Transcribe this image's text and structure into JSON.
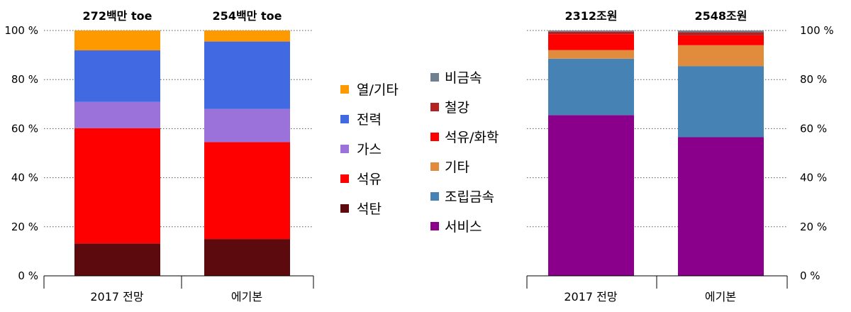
{
  "chart_data": [
    {
      "type": "bar",
      "stacked": "percent",
      "categories": [
        "2017 전망",
        "에기본"
      ],
      "totals": [
        "272백만 toe",
        "254백만 toe"
      ],
      "ylim": [
        0,
        100
      ],
      "yticks": [
        "0 %",
        "20 %",
        "40 %",
        "60 %",
        "80 %",
        "100 %"
      ],
      "grid": true,
      "legend_position": "right",
      "series": [
        {
          "name": "석탄",
          "color": "#5c0a0e",
          "values": [
            13.2,
            15.0
          ]
        },
        {
          "name": "석유",
          "color": "#ff0000",
          "values": [
            47.0,
            39.5
          ]
        },
        {
          "name": "가스",
          "color": "#9b72d9",
          "values": [
            10.7,
            13.5
          ]
        },
        {
          "name": "전력",
          "color": "#4169e1",
          "values": [
            21.0,
            27.5
          ]
        },
        {
          "name": "열/기타",
          "color": "#ff9900",
          "values": [
            8.1,
            4.5
          ]
        }
      ]
    },
    {
      "type": "bar",
      "stacked": "percent",
      "categories": [
        "2017 전망",
        "에기본"
      ],
      "totals": [
        "2312조원",
        "2548조원"
      ],
      "ylim": [
        0,
        100
      ],
      "yticks": [
        "0 %",
        "20 %",
        "40 %",
        "60 %",
        "80 %",
        "100 %"
      ],
      "grid": true,
      "legend_position": "left",
      "series": [
        {
          "name": "서비스",
          "color": "#8b008b",
          "values": [
            65.5,
            56.5
          ]
        },
        {
          "name": "조립금속",
          "color": "#4682b4",
          "values": [
            23.0,
            29.0
          ]
        },
        {
          "name": "기타",
          "color": "#e08c3c",
          "values": [
            3.5,
            8.5
          ]
        },
        {
          "name": "석유/화학",
          "color": "#ff0000",
          "values": [
            6.5,
            4.0
          ]
        },
        {
          "name": "철강",
          "color": "#b22222",
          "values": [
            1.0,
            1.3
          ]
        },
        {
          "name": "비금속",
          "color": "#708090",
          "values": [
            0.5,
            0.7
          ]
        }
      ]
    }
  ]
}
